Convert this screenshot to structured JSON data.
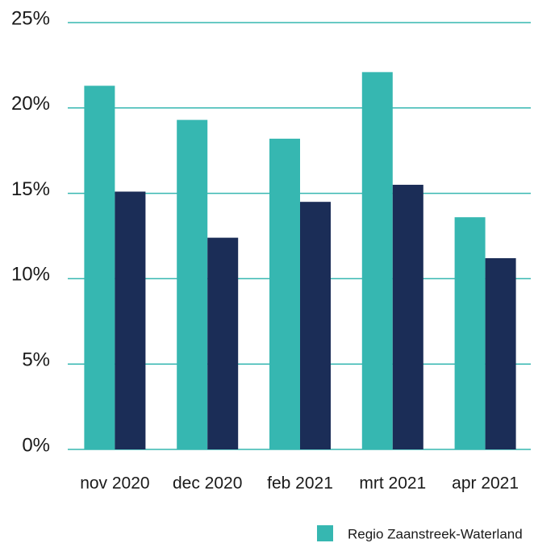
{
  "chart_data": {
    "type": "bar",
    "categories": [
      "nov 2020",
      "dec 2020",
      "feb 2021",
      "mrt 2021",
      "apr 2021"
    ],
    "series": [
      {
        "name": "Regio Zaanstreek-Waterland",
        "color": "#36b7b1",
        "values": [
          21.3,
          19.3,
          18.2,
          22.1,
          13.6
        ]
      },
      {
        "color": "#1b2d57",
        "values": [
          15.1,
          12.4,
          14.5,
          15.5,
          11.2
        ]
      }
    ],
    "ylim": [
      0,
      25
    ],
    "yticks": [
      {
        "value": 0,
        "label": "0%"
      },
      {
        "value": 5,
        "label": "5%"
      },
      {
        "value": 10,
        "label": "10%"
      },
      {
        "value": 15,
        "label": "15%"
      },
      {
        "value": 20,
        "label": "20%"
      },
      {
        "value": 25,
        "label": "25%"
      }
    ],
    "grid": true
  }
}
